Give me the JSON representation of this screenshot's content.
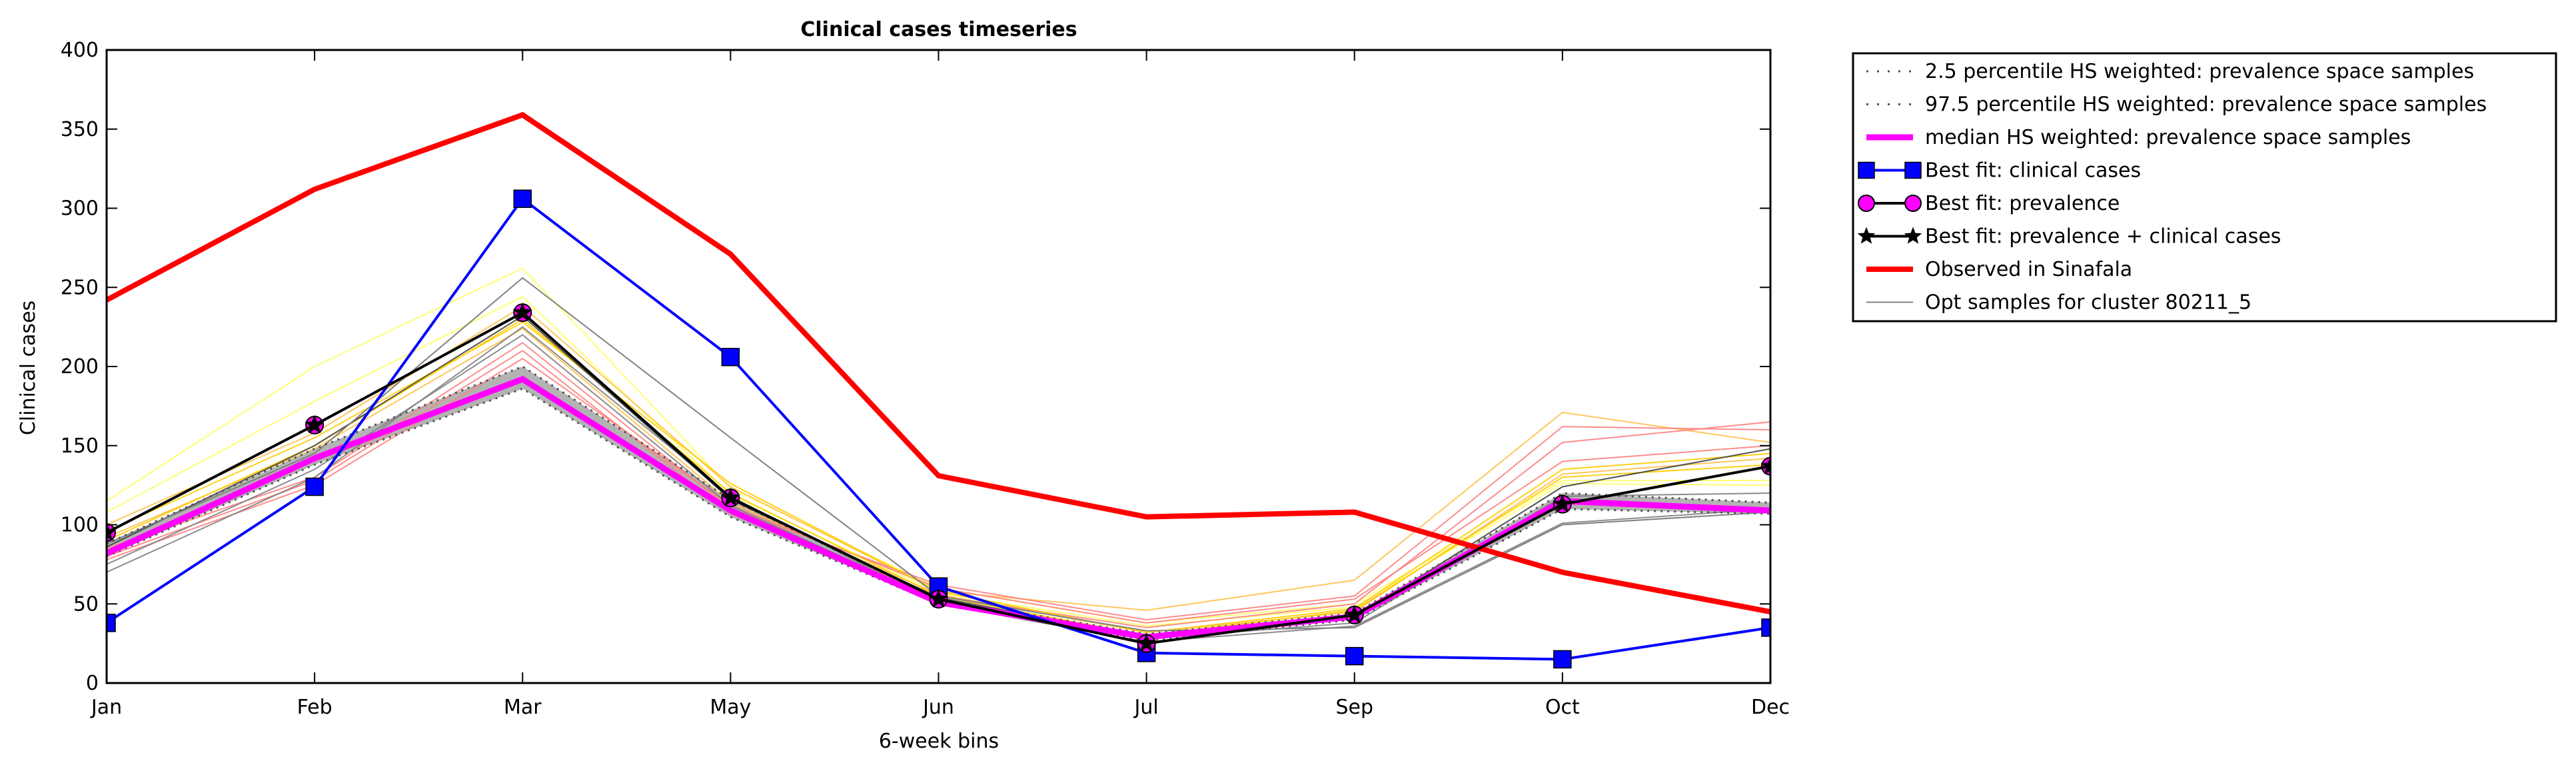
{
  "chart_data": {
    "type": "line",
    "title": "Clinical cases timeseries",
    "xlabel": "6-week bins",
    "ylabel": "Clinical cases",
    "categories": [
      "Jan",
      "Feb",
      "Mar",
      "May",
      "Jun",
      "Jul",
      "Sep",
      "Oct",
      "Dec"
    ],
    "ylim": [
      0,
      400
    ],
    "yticks": [
      0,
      50,
      100,
      150,
      200,
      250,
      300,
      350,
      400
    ],
    "grid": false,
    "legend_position": "outside-right",
    "band": {
      "lower": [
        80,
        138,
        186,
        105,
        50,
        27,
        40,
        110,
        107
      ],
      "upper": [
        88,
        148,
        200,
        116,
        53,
        31,
        44,
        120,
        114
      ],
      "color": "#a6a6a6"
    },
    "series": [
      {
        "name": "2.5 percentile HS weighted: prevalence space samples",
        "style": "dotted",
        "color": "#555555",
        "values": [
          80,
          138,
          186,
          105,
          50,
          27,
          40,
          110,
          107
        ]
      },
      {
        "name": "97.5 percentile HS weighted: prevalence space samples",
        "style": "dotted",
        "color": "#555555",
        "values": [
          88,
          148,
          200,
          116,
          53,
          31,
          44,
          120,
          114
        ]
      },
      {
        "name": "median HS weighted: prevalence space samples",
        "style": "thick",
        "color": "#ff00ff",
        "values": [
          82,
          142,
          192,
          109,
          51,
          29,
          42,
          115,
          109
        ]
      },
      {
        "name": "Best fit: clinical cases",
        "style": "square",
        "color": "#0000ff",
        "values": [
          38,
          124,
          306,
          206,
          61,
          19,
          17,
          15,
          35
        ]
      },
      {
        "name": "Best fit: prevalence",
        "style": "circle",
        "color": "#ff00ff",
        "values": [
          95,
          163,
          234,
          117,
          53,
          25,
          43,
          113,
          137
        ]
      },
      {
        "name": "Best fit: prevalence + clinical cases",
        "style": "star",
        "color": "#000000",
        "values": [
          95,
          163,
          234,
          117,
          53,
          25,
          43,
          113,
          137
        ]
      },
      {
        "name": "Observed in Sinafala",
        "style": "observed",
        "color": "#ff0000",
        "values": [
          242,
          312,
          359,
          271,
          131,
          105,
          108,
          70,
          45
        ]
      },
      {
        "name": "Opt samples for cluster 80211_5",
        "style": "thin",
        "color": "#808080",
        "values": [
          88,
          145,
          256,
          155,
          55,
          33,
          35,
          100,
          108
        ]
      }
    ],
    "opt_samples": [
      {
        "color": "#ffff66",
        "values": [
          115,
          200,
          262,
          123,
          60,
          38,
          50,
          128,
          128
        ]
      },
      {
        "color": "#ffff66",
        "values": [
          108,
          178,
          244,
          119,
          57,
          36,
          48,
          126,
          125
        ]
      },
      {
        "color": "#ffc04d",
        "values": [
          100,
          158,
          238,
          124,
          58,
          46,
          65,
          171,
          152
        ]
      },
      {
        "color": "#ffc04d",
        "values": [
          92,
          148,
          224,
          114,
          56,
          32,
          45,
          132,
          142
        ]
      },
      {
        "color": "#ff7f7f",
        "values": [
          85,
          130,
          215,
          110,
          62,
          40,
          55,
          162,
          160
        ]
      },
      {
        "color": "#ff7f7f",
        "values": [
          80,
          128,
          210,
          107,
          55,
          35,
          50,
          152,
          165
        ]
      },
      {
        "color": "#ff7f7f",
        "values": [
          78,
          125,
          205,
          112,
          60,
          38,
          53,
          140,
          150
        ]
      },
      {
        "color": "#ffcc00",
        "values": [
          90,
          150,
          230,
          120,
          55,
          30,
          46,
          130,
          138
        ]
      },
      {
        "color": "#ffcc00",
        "values": [
          96,
          155,
          228,
          126,
          58,
          32,
          47,
          135,
          145
        ]
      },
      {
        "color": "#808080",
        "values": [
          75,
          135,
          220,
          112,
          52,
          28,
          38,
          118,
          120
        ]
      },
      {
        "color": "#808080",
        "values": [
          70,
          130,
          225,
          118,
          50,
          26,
          36,
          101,
          110
        ]
      },
      {
        "color": "#404040",
        "values": [
          86,
          150,
          232,
          116,
          54,
          29,
          41,
          124,
          148
        ]
      }
    ]
  }
}
